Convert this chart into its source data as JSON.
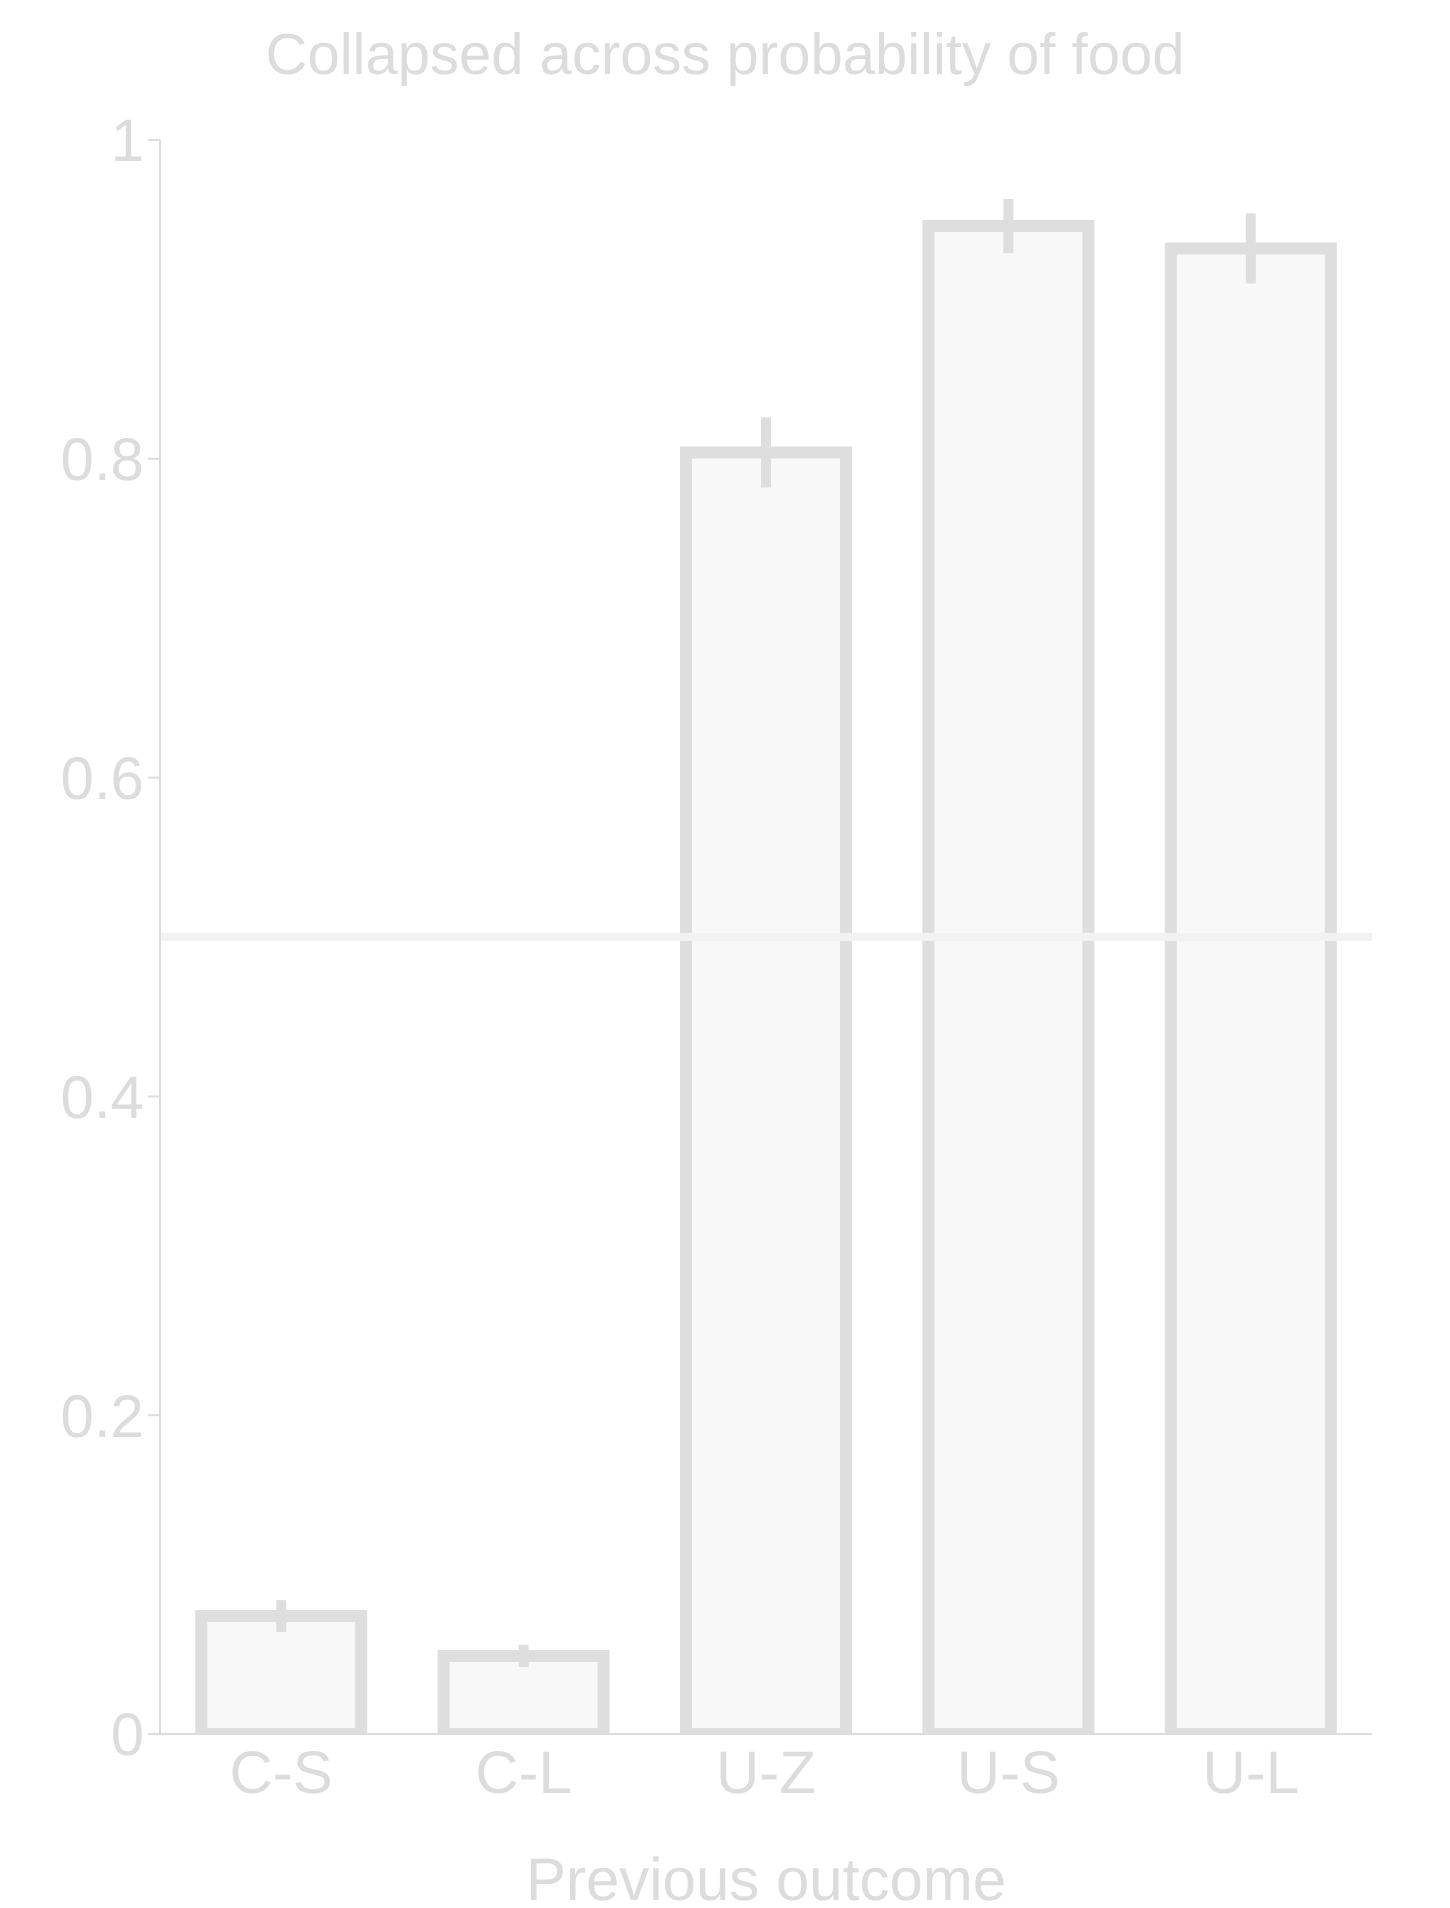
{
  "chart_data": {
    "type": "bar",
    "title": "Collapsed across probability of food",
    "xlabel": "Previous outcome",
    "categories": [
      "C-S",
      "C-L",
      "U-Z",
      "U-S",
      "U-L"
    ],
    "values": [
      0.074,
      0.049,
      0.804,
      0.946,
      0.932
    ],
    "errors": [
      0.01,
      0.007,
      0.022,
      0.017,
      0.022
    ],
    "color": "#dedede",
    "ylim": [
      0,
      1
    ],
    "yticks": [
      0,
      0.2,
      0.4,
      0.6,
      0.8,
      1
    ],
    "ref_lines": [
      {
        "axis": "y",
        "value": 0.5,
        "color": "#f2f2f2"
      }
    ],
    "grid": false
  }
}
